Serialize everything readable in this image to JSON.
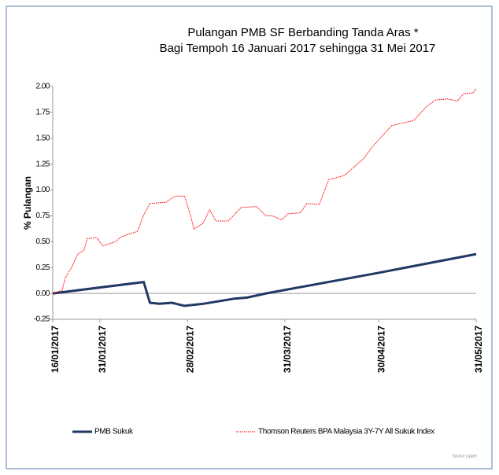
{
  "chart_data": {
    "type": "line",
    "title": "Pulangan PMB SF Berbanding Tanda Aras *",
    "subtitle": "Bagi Tempoh 16 Januari 2017 sehingga 31 Mei 2017",
    "y_label": "% Pulangan",
    "source": "Source Lipper",
    "xlim": [
      "2017-01-16",
      "2017-05-31"
    ],
    "xticks": [
      {
        "value": "2017-01-16",
        "label": "16/01/2017"
      },
      {
        "value": "2017-01-31",
        "label": "31/01/2017"
      },
      {
        "value": "2017-02-28",
        "label": "28/02/2017"
      },
      {
        "value": "2017-03-31",
        "label": "31/03/2017"
      },
      {
        "value": "2017-04-30",
        "label": "30/04/2017"
      },
      {
        "value": "2017-05-31",
        "label": "31/05/2017"
      }
    ],
    "ylim": [
      -0.25,
      2.0
    ],
    "yticks": [
      {
        "value": -0.25,
        "label": "-0.25"
      },
      {
        "value": 0,
        "label": "0.00"
      },
      {
        "value": 0.25,
        "label": "0.25"
      },
      {
        "value": 0.5,
        "label": "0.50"
      },
      {
        "value": 0.75,
        "label": "0.75"
      },
      {
        "value": 1.0,
        "label": "1.00"
      },
      {
        "value": 1.25,
        "label": "1.25"
      },
      {
        "value": 1.5,
        "label": "1.50"
      },
      {
        "value": 1.75,
        "label": "1.75"
      },
      {
        "value": 2.0,
        "label": "2.00"
      }
    ],
    "series": [
      {
        "name": "PMB Sukuk",
        "color": "#1f3864",
        "x": [
          "2017-01-16",
          "2017-02-14",
          "2017-02-16",
          "2017-02-19",
          "2017-02-23",
          "2017-02-27",
          "2017-03-05",
          "2017-03-15",
          "2017-03-19",
          "2017-03-25",
          "2017-04-30",
          "2017-05-31"
        ],
        "values": [
          0.0,
          0.11,
          -0.09,
          -0.1,
          -0.09,
          -0.12,
          -0.1,
          -0.05,
          -0.04,
          0.0,
          0.2,
          0.38
        ]
      },
      {
        "name": "Thomson Reuters BPA Malaysia 3Y-7Y All Sukuk Index",
        "color": "#ff0000",
        "x": [
          "2017-01-16",
          "2017-01-19",
          "2017-01-20",
          "2017-01-22",
          "2017-01-24",
          "2017-01-26",
          "2017-01-27",
          "2017-01-30",
          "2017-02-01",
          "2017-02-05",
          "2017-02-07",
          "2017-02-12",
          "2017-02-14",
          "2017-02-16",
          "2017-02-21",
          "2017-02-24",
          "2017-02-27",
          "2017-03-01",
          "2017-03-02",
          "2017-03-05",
          "2017-03-07",
          "2017-03-09",
          "2017-03-13",
          "2017-03-17",
          "2017-03-22",
          "2017-03-25",
          "2017-03-27",
          "2017-03-30",
          "2017-04-01",
          "2017-04-05",
          "2017-04-07",
          "2017-04-11",
          "2017-04-14",
          "2017-04-19",
          "2017-04-22",
          "2017-04-25",
          "2017-04-28",
          "2017-05-01",
          "2017-05-04",
          "2017-05-08",
          "2017-05-11",
          "2017-05-15",
          "2017-05-18",
          "2017-05-22",
          "2017-05-25",
          "2017-05-27",
          "2017-05-30",
          "2017-05-31"
        ],
        "values": [
          0.0,
          0.03,
          0.15,
          0.25,
          0.38,
          0.42,
          0.53,
          0.54,
          0.46,
          0.5,
          0.55,
          0.6,
          0.76,
          0.87,
          0.88,
          0.94,
          0.94,
          0.75,
          0.62,
          0.68,
          0.81,
          0.7,
          0.7,
          0.83,
          0.84,
          0.75,
          0.75,
          0.71,
          0.77,
          0.78,
          0.87,
          0.86,
          1.1,
          1.14,
          1.22,
          1.3,
          1.42,
          1.52,
          1.62,
          1.65,
          1.67,
          1.8,
          1.87,
          1.88,
          1.86,
          1.93,
          1.94,
          1.98
        ]
      }
    ]
  }
}
